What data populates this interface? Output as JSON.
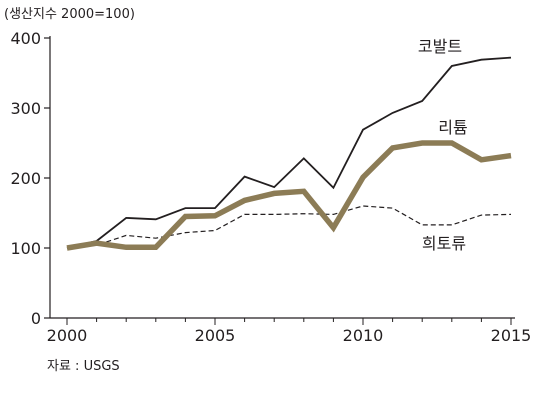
{
  "chart_data": {
    "type": "line",
    "unit_label": "(생산지수 2000=100)",
    "source": "자료 : USGS",
    "x": [
      2000,
      2001,
      2002,
      2003,
      2004,
      2005,
      2006,
      2007,
      2008,
      2009,
      2010,
      2011,
      2012,
      2013,
      2014,
      2015
    ],
    "xlim": [
      2000,
      2015
    ],
    "ylim": [
      0,
      400
    ],
    "xticks": [
      2000,
      2005,
      2010,
      2015
    ],
    "yticks": [
      0,
      100,
      200,
      300,
      400
    ],
    "grid": false,
    "series": [
      {
        "name": "코발트",
        "color": "#231f20",
        "style": "solid-thin",
        "values": [
          100,
          110,
          143,
          141,
          157,
          157,
          202,
          187,
          228,
          186,
          269,
          293,
          310,
          360,
          369,
          372
        ]
      },
      {
        "name": "리튬",
        "color": "#8c7c56",
        "style": "solid-thick",
        "values": [
          100,
          107,
          101,
          101,
          145,
          146,
          168,
          178,
          181,
          129,
          201,
          243,
          250,
          250,
          226,
          232
        ]
      },
      {
        "name": "희토류",
        "color": "#231f20",
        "style": "dashed",
        "values": [
          100,
          104,
          118,
          114,
          122,
          125,
          148,
          148,
          149,
          148,
          160,
          157,
          133,
          133,
          147,
          148
        ]
      }
    ]
  }
}
